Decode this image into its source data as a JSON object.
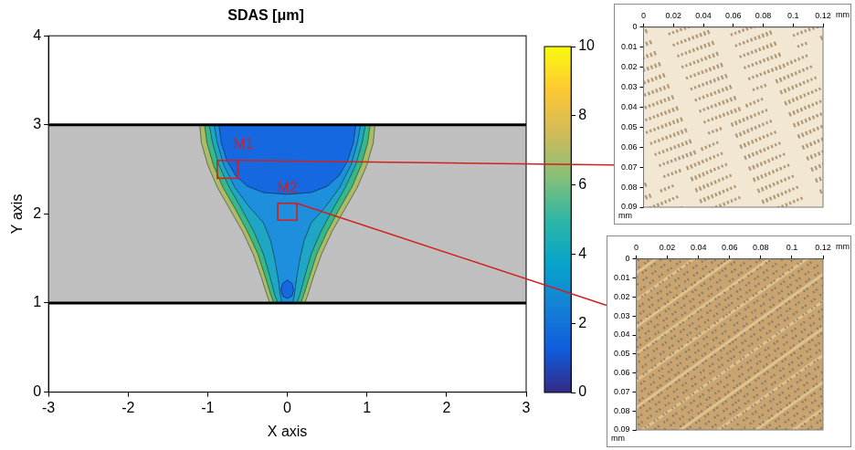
{
  "chart_data": [
    {
      "type": "contour",
      "title": "SDAS [μm]",
      "xlabel": "X axis",
      "ylabel": "Y axis",
      "xlim": [
        -3,
        3
      ],
      "xticks": [
        -3,
        -2,
        -1,
        0,
        1,
        2,
        3
      ],
      "ylim": [
        0,
        4
      ],
      "yticks": [
        0,
        1,
        2,
        3,
        4
      ],
      "grid": false,
      "plate": {
        "values": [
          1,
          3
        ],
        "color": "#bfbfbf"
      },
      "boundaries": {
        "values": [
          1,
          3
        ],
        "color": "#000000"
      },
      "regions": [
        {
          "color": "#a9bd67",
          "points": [
            [
              -1.1,
              3
            ],
            [
              -1.08,
              2.8
            ],
            [
              -1.0,
              2.55
            ],
            [
              -0.88,
              2.3
            ],
            [
              -0.72,
              2.05
            ],
            [
              -0.56,
              1.8
            ],
            [
              -0.43,
              1.55
            ],
            [
              -0.33,
              1.3
            ],
            [
              -0.26,
              1.1
            ],
            [
              -0.22,
              1
            ],
            [
              0.22,
              1
            ],
            [
              0.26,
              1.1
            ],
            [
              0.33,
              1.3
            ],
            [
              0.43,
              1.55
            ],
            [
              0.56,
              1.8
            ],
            [
              0.72,
              2.05
            ],
            [
              0.88,
              2.3
            ],
            [
              1.0,
              2.55
            ],
            [
              1.08,
              2.8
            ],
            [
              1.1,
              3
            ]
          ]
        },
        {
          "color": "#38b88a",
          "points": [
            [
              -1.04,
              3
            ],
            [
              -1.01,
              2.8
            ],
            [
              -0.93,
              2.55
            ],
            [
              -0.81,
              2.3
            ],
            [
              -0.65,
              2.05
            ],
            [
              -0.5,
              1.8
            ],
            [
              -0.37,
              1.55
            ],
            [
              -0.28,
              1.3
            ],
            [
              -0.21,
              1.1
            ],
            [
              -0.17,
              1
            ],
            [
              0.17,
              1
            ],
            [
              0.21,
              1.1
            ],
            [
              0.28,
              1.3
            ],
            [
              0.37,
              1.55
            ],
            [
              0.5,
              1.8
            ],
            [
              0.65,
              2.05
            ],
            [
              0.81,
              2.3
            ],
            [
              0.93,
              2.55
            ],
            [
              1.01,
              2.8
            ],
            [
              1.04,
              3
            ]
          ]
        },
        {
          "color": "#1fa6c4",
          "points": [
            [
              -0.98,
              3
            ],
            [
              -0.94,
              2.8
            ],
            [
              -0.86,
              2.55
            ],
            [
              -0.73,
              2.3
            ],
            [
              -0.57,
              2.05
            ],
            [
              -0.42,
              1.8
            ],
            [
              -0.3,
              1.55
            ],
            [
              -0.22,
              1.3
            ],
            [
              -0.16,
              1.1
            ],
            [
              -0.12,
              1
            ],
            [
              0.12,
              1
            ],
            [
              0.16,
              1.1
            ],
            [
              0.22,
              1.3
            ],
            [
              0.3,
              1.55
            ],
            [
              0.42,
              1.8
            ],
            [
              0.57,
              2.05
            ],
            [
              0.73,
              2.3
            ],
            [
              0.86,
              2.55
            ],
            [
              0.94,
              2.8
            ],
            [
              0.98,
              3
            ]
          ]
        },
        {
          "color": "#1e8fdc",
          "points": [
            [
              -0.92,
              3
            ],
            [
              -0.88,
              2.8
            ],
            [
              -0.8,
              2.55
            ],
            [
              -0.66,
              2.3
            ],
            [
              -0.48,
              2.08
            ],
            [
              -0.3,
              1.9
            ],
            [
              -0.21,
              1.7
            ],
            [
              -0.16,
              1.5
            ],
            [
              -0.12,
              1.3
            ],
            [
              -0.09,
              1.1
            ],
            [
              -0.07,
              1
            ],
            [
              0.07,
              1
            ],
            [
              0.09,
              1.1
            ],
            [
              0.12,
              1.3
            ],
            [
              0.16,
              1.5
            ],
            [
              0.21,
              1.7
            ],
            [
              0.3,
              1.9
            ],
            [
              0.48,
              2.08
            ],
            [
              0.66,
              2.3
            ],
            [
              0.8,
              2.55
            ],
            [
              0.88,
              2.8
            ],
            [
              0.92,
              3
            ]
          ]
        },
        {
          "color": "#1668e0",
          "points": [
            [
              -0.86,
              3
            ],
            [
              -0.83,
              2.8
            ],
            [
              -0.76,
              2.6
            ],
            [
              -0.65,
              2.43
            ],
            [
              -0.5,
              2.31
            ],
            [
              -0.3,
              2.24
            ],
            [
              0,
              2.22
            ],
            [
              0.3,
              2.24
            ],
            [
              0.5,
              2.31
            ],
            [
              0.65,
              2.43
            ],
            [
              0.76,
              2.6
            ],
            [
              0.83,
              2.8
            ],
            [
              0.86,
              3
            ]
          ]
        },
        {
          "color": "#1668e0",
          "points": [
            [
              -0.08,
              1.15
            ],
            [
              -0.06,
              1.22
            ],
            [
              0,
              1.26
            ],
            [
              0.06,
              1.22
            ],
            [
              0.08,
              1.15
            ],
            [
              0.06,
              1.08
            ],
            [
              0,
              1.05
            ],
            [
              -0.06,
              1.08
            ]
          ]
        }
      ],
      "colorbar": {
        "range": [
          0,
          10
        ],
        "ticks": [
          0,
          2,
          4,
          6,
          8,
          10
        ],
        "colors": [
          "#352a87",
          "#0f5cdd",
          "#1481d6",
          "#06a4ca",
          "#2eb7a4",
          "#87bf77",
          "#d1bb59",
          "#fec832",
          "#f9fb0e"
        ]
      },
      "annotations": [
        {
          "text": "M1",
          "x": -0.55,
          "y": 2.78,
          "box": [
            -0.88,
            2.4,
            -0.62,
            2.6
          ],
          "color": "#d02020"
        },
        {
          "text": "M2",
          "x": 0,
          "y": 2.28,
          "box": [
            -0.12,
            1.93,
            0.12,
            2.12
          ],
          "color": "#d02020"
        }
      ]
    },
    {
      "type": "image",
      "xlabel": "mm",
      "ylabel": "mm",
      "color": "#f1e7d3",
      "xlim": [
        0,
        0.12
      ],
      "xticks": [
        0,
        0.02,
        0.04,
        0.06,
        0.08,
        0.1,
        0.12
      ],
      "ylim": [
        0,
        0.09
      ],
      "yticks": [
        0,
        0.01,
        0.02,
        0.03,
        0.04,
        0.05,
        0.06,
        0.07,
        0.08,
        0.09
      ]
    },
    {
      "type": "image",
      "xlabel": "mm",
      "ylabel": "mm",
      "color": "#c9a46e",
      "xlim": [
        0,
        0.12
      ],
      "xticks": [
        0,
        0.02,
        0.04,
        0.06,
        0.08,
        0.1,
        0.12
      ],
      "ylim": [
        0,
        0.09
      ],
      "yticks": [
        0,
        0.01,
        0.02,
        0.03,
        0.04,
        0.05,
        0.06,
        0.07,
        0.08,
        0.09
      ]
    }
  ]
}
